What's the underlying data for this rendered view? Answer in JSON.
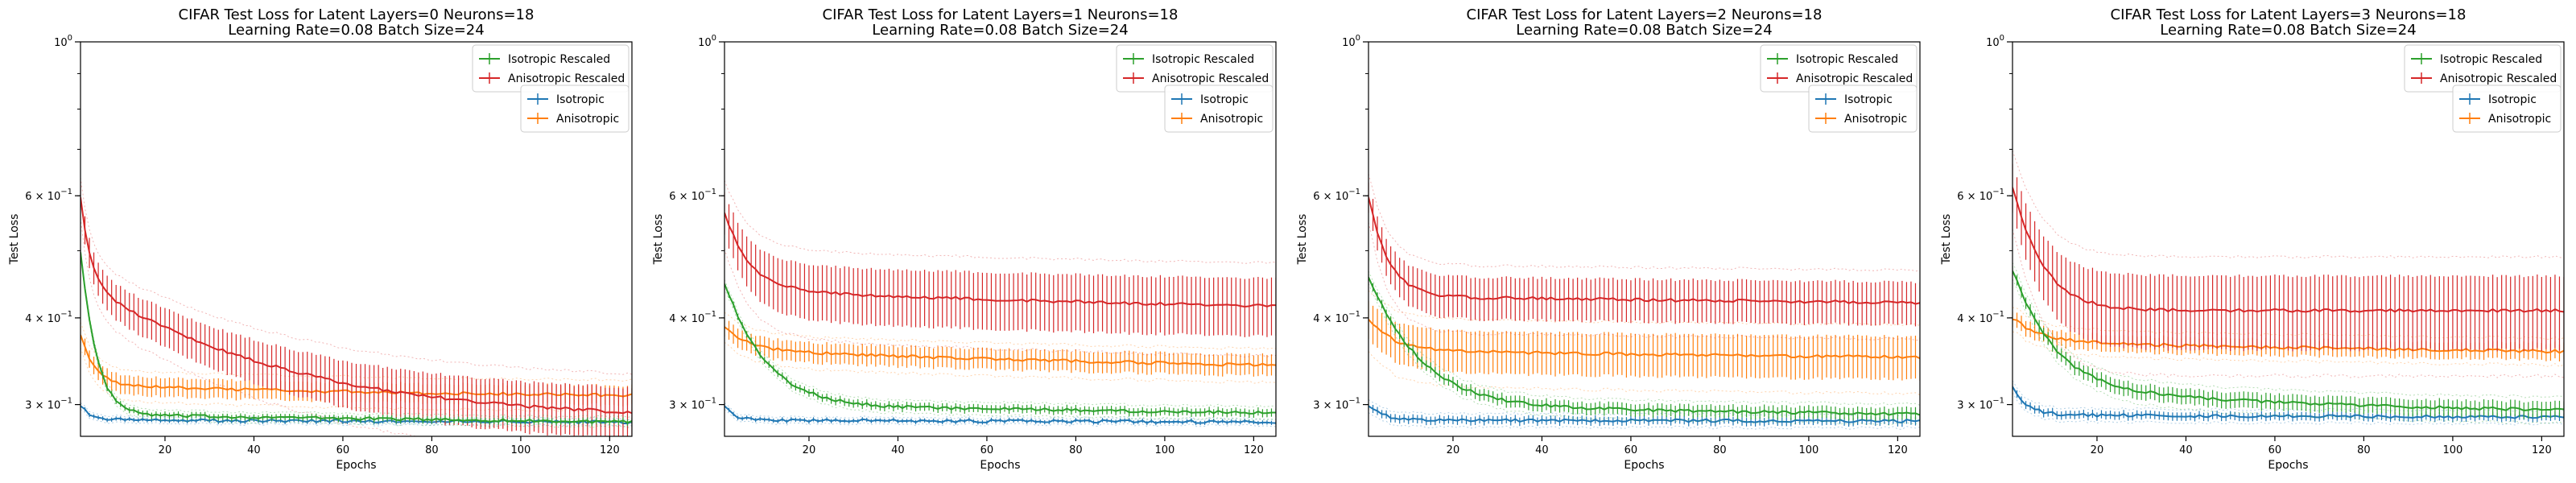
{
  "chart_data": [
    {
      "type": "line",
      "title_line1": "CIFAR Test Loss for Latent Layers=0 Neurons=18",
      "title_line2": "Learning Rate=0.08 Batch Size=24",
      "xlabel": "Epochs",
      "ylabel": "Test Loss",
      "xlim": [
        1,
        125
      ],
      "ylim": [
        0.27,
        1.0
      ],
      "yscale": "log",
      "xticks": [
        20,
        40,
        60,
        80,
        100,
        120
      ],
      "xtick_labels": [
        "20",
        "40",
        "60",
        "80",
        "100",
        "120"
      ],
      "ytick_labels": [
        {
          "value": 1.0,
          "base": "10",
          "exp": "0",
          "coef": ""
        },
        {
          "value": 0.6,
          "base": "10",
          "exp": "−1",
          "coef": "6 × "
        },
        {
          "value": 0.4,
          "base": "10",
          "exp": "−1",
          "coef": "4 × "
        },
        {
          "value": 0.3,
          "base": "10",
          "exp": "−1",
          "coef": "3 × "
        }
      ],
      "legend1": [
        "Isotropic Rescaled",
        "Anisotropic Rescaled"
      ],
      "legend2": [
        "Isotropic",
        "Anisotropic"
      ],
      "series": [
        {
          "name": "Isotropic Rescaled",
          "color": "#2ca02c",
          "start": 0.5,
          "mid": 0.29,
          "end": 0.283,
          "decay": 3,
          "drift": 0,
          "err": 0.003
        },
        {
          "name": "Anisotropic Rescaled",
          "color": "#d62728",
          "start": 0.6,
          "mid": 0.45,
          "end": 0.285,
          "decay": 2,
          "drift": 1,
          "err": 0.025
        },
        {
          "name": "Isotropic",
          "color": "#1f77b4",
          "start": 0.3,
          "mid": 0.285,
          "end": 0.283,
          "decay": 2,
          "drift": 0,
          "err": 0.002
        },
        {
          "name": "Anisotropic",
          "color": "#ff7f0e",
          "start": 0.38,
          "mid": 0.32,
          "end": 0.305,
          "decay": 3,
          "drift": 0.4,
          "err": 0.01
        }
      ]
    },
    {
      "type": "line",
      "title_line1": "CIFAR Test Loss for Latent Layers=1 Neurons=18",
      "title_line2": "Learning Rate=0.08 Batch Size=24",
      "xlabel": "Epochs",
      "ylabel": "Test Loss",
      "xlim": [
        1,
        125
      ],
      "ylim": [
        0.27,
        1.0
      ],
      "yscale": "log",
      "xticks": [
        20,
        40,
        60,
        80,
        100,
        120
      ],
      "xtick_labels": [
        "20",
        "40",
        "60",
        "80",
        "100",
        "120"
      ],
      "ytick_labels": [
        {
          "value": 1.0,
          "base": "10",
          "exp": "0",
          "coef": ""
        },
        {
          "value": 0.6,
          "base": "10",
          "exp": "−1",
          "coef": "6 × "
        },
        {
          "value": 0.4,
          "base": "10",
          "exp": "−1",
          "coef": "4 × "
        },
        {
          "value": 0.3,
          "base": "10",
          "exp": "−1",
          "coef": "3 × "
        }
      ],
      "legend1": [
        "Isotropic Rescaled",
        "Anisotropic Rescaled"
      ],
      "legend2": [
        "Isotropic",
        "Anisotropic"
      ],
      "series": [
        {
          "name": "Isotropic Rescaled",
          "color": "#2ca02c",
          "start": 0.45,
          "mid": 0.3,
          "end": 0.283,
          "decay": 8,
          "drift": 0.2,
          "err": 0.004
        },
        {
          "name": "Anisotropic Rescaled",
          "color": "#d62728",
          "start": 0.57,
          "mid": 0.44,
          "end": 0.4,
          "decay": 5,
          "drift": 0.3,
          "err": 0.04
        },
        {
          "name": "Isotropic",
          "color": "#1f77b4",
          "start": 0.3,
          "mid": 0.285,
          "end": 0.283,
          "decay": 2,
          "drift": 0,
          "err": 0.002
        },
        {
          "name": "Anisotropic",
          "color": "#ff7f0e",
          "start": 0.39,
          "mid": 0.36,
          "end": 0.33,
          "decay": 5,
          "drift": 0.3,
          "err": 0.012
        }
      ]
    },
    {
      "type": "line",
      "title_line1": "CIFAR Test Loss for Latent Layers=2 Neurons=18",
      "title_line2": "Learning Rate=0.08 Batch Size=24",
      "xlabel": "Epochs",
      "ylabel": "Test Loss",
      "xlim": [
        1,
        125
      ],
      "ylim": [
        0.27,
        1.0
      ],
      "yscale": "log",
      "xticks": [
        20,
        40,
        60,
        80,
        100,
        120
      ],
      "xtick_labels": [
        "20",
        "40",
        "60",
        "80",
        "100",
        "120"
      ],
      "ytick_labels": [
        {
          "value": 1.0,
          "base": "10",
          "exp": "0",
          "coef": ""
        },
        {
          "value": 0.6,
          "base": "10",
          "exp": "−1",
          "coef": "6 × "
        },
        {
          "value": 0.4,
          "base": "10",
          "exp": "−1",
          "coef": "4 × "
        },
        {
          "value": 0.3,
          "base": "10",
          "exp": "−1",
          "coef": "3 × "
        }
      ],
      "legend1": [
        "Isotropic Rescaled",
        "Anisotropic Rescaled"
      ],
      "legend2": [
        "Isotropic",
        "Anisotropic"
      ],
      "series": [
        {
          "name": "Isotropic Rescaled",
          "color": "#2ca02c",
          "start": 0.46,
          "mid": 0.3,
          "end": 0.285,
          "decay": 10,
          "drift": 0.3,
          "err": 0.006
        },
        {
          "name": "Anisotropic Rescaled",
          "color": "#d62728",
          "start": 0.6,
          "mid": 0.43,
          "end": 0.41,
          "decay": 4,
          "drift": 0.2,
          "err": 0.03
        },
        {
          "name": "Isotropic",
          "color": "#1f77b4",
          "start": 0.3,
          "mid": 0.285,
          "end": 0.284,
          "decay": 3,
          "drift": 0,
          "err": 0.004
        },
        {
          "name": "Anisotropic",
          "color": "#ff7f0e",
          "start": 0.4,
          "mid": 0.36,
          "end": 0.345,
          "decay": 5,
          "drift": 0.3,
          "err": 0.025
        }
      ]
    },
    {
      "type": "line",
      "title_line1": "CIFAR Test Loss for Latent Layers=3 Neurons=18",
      "title_line2": "Learning Rate=0.08 Batch Size=24",
      "xlabel": "Epochs",
      "ylabel": "Test Loss",
      "xlim": [
        1,
        125
      ],
      "ylim": [
        0.27,
        1.0
      ],
      "yscale": "log",
      "xticks": [
        20,
        40,
        60,
        80,
        100,
        120
      ],
      "xtick_labels": [
        "20",
        "40",
        "60",
        "80",
        "100",
        "120"
      ],
      "ytick_labels": [
        {
          "value": 1.0,
          "base": "10",
          "exp": "0",
          "coef": ""
        },
        {
          "value": 0.6,
          "base": "10",
          "exp": "−1",
          "coef": "6 × "
        },
        {
          "value": 0.4,
          "base": "10",
          "exp": "−1",
          "coef": "4 × "
        },
        {
          "value": 0.3,
          "base": "10",
          "exp": "−1",
          "coef": "3 × "
        }
      ],
      "legend1": [
        "Isotropic Rescaled",
        "Anisotropic Rescaled"
      ],
      "legend2": [
        "Isotropic",
        "Anisotropic"
      ],
      "series": [
        {
          "name": "Isotropic Rescaled",
          "color": "#2ca02c",
          "start": 0.47,
          "mid": 0.32,
          "end": 0.29,
          "decay": 8,
          "drift": 0.6,
          "err": 0.008
        },
        {
          "name": "Anisotropic Rescaled",
          "color": "#d62728",
          "start": 0.62,
          "mid": 0.41,
          "end": 0.41,
          "decay": 6,
          "drift": 0,
          "err": 0.05
        },
        {
          "name": "Isotropic",
          "color": "#1f77b4",
          "start": 0.32,
          "mid": 0.29,
          "end": 0.285,
          "decay": 3,
          "drift": 0.2,
          "err": 0.004
        },
        {
          "name": "Anisotropic",
          "color": "#ff7f0e",
          "start": 0.4,
          "mid": 0.37,
          "end": 0.35,
          "decay": 6,
          "drift": 0.3,
          "err": 0.01
        }
      ]
    }
  ]
}
